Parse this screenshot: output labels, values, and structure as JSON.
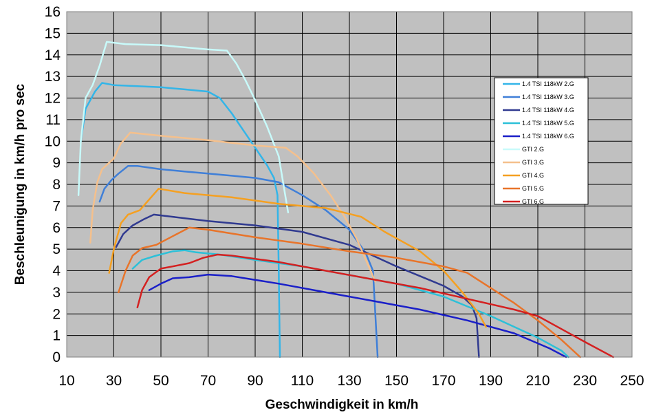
{
  "chart_data": {
    "type": "line",
    "title": "",
    "xlabel": "Geschwindigkeit in km/h",
    "ylabel": "Beschleunigung in km/h pro sec",
    "xlim": [
      10,
      250
    ],
    "ylim": [
      0,
      16
    ],
    "xticks": [
      "10",
      "30",
      "50",
      "70",
      "90",
      "110",
      "130",
      "150",
      "170",
      "190",
      "210",
      "230",
      "250"
    ],
    "yticks": [
      "0",
      "1",
      "2",
      "3",
      "4",
      "5",
      "6",
      "7",
      "8",
      "9",
      "10",
      "11",
      "12",
      "13",
      "14",
      "15",
      "16"
    ],
    "grid": true,
    "plot_background": "#c0c0c0",
    "legend_position": "right",
    "series": [
      {
        "name": "1.4 TSI 118kW  2.G",
        "color": "#33b5e8",
        "points": [
          [
            16,
            10
          ],
          [
            18,
            11.5
          ],
          [
            22,
            12.3
          ],
          [
            25,
            12.7
          ],
          [
            30,
            12.6
          ],
          [
            40,
            12.55
          ],
          [
            50,
            12.5
          ],
          [
            60,
            12.4
          ],
          [
            70,
            12.3
          ],
          [
            75,
            12
          ],
          [
            80,
            11.3
          ],
          [
            85,
            10.5
          ],
          [
            90,
            9.7
          ],
          [
            95,
            8.9
          ],
          [
            98,
            8.3
          ],
          [
            99.5,
            7.5
          ],
          [
            100,
            4
          ],
          [
            100.5,
            0
          ]
        ]
      },
      {
        "name": "1.4 TSI 118kW  3.G",
        "color": "#3f7fd8",
        "points": [
          [
            24,
            7.2
          ],
          [
            26,
            7.8
          ],
          [
            29,
            8.2
          ],
          [
            32,
            8.5
          ],
          [
            36,
            8.85
          ],
          [
            40,
            8.85
          ],
          [
            50,
            8.7
          ],
          [
            60,
            8.6
          ],
          [
            70,
            8.5
          ],
          [
            80,
            8.4
          ],
          [
            90,
            8.3
          ],
          [
            100,
            8.1
          ],
          [
            110,
            7.5
          ],
          [
            120,
            6.8
          ],
          [
            130,
            5.9
          ],
          [
            137,
            4.8
          ],
          [
            140,
            4
          ],
          [
            141,
            2
          ],
          [
            142,
            0
          ]
        ]
      },
      {
        "name": "1.4 TSI 118kW  4.G",
        "color": "#303a90",
        "points": [
          [
            31,
            5.1
          ],
          [
            34,
            5.7
          ],
          [
            38,
            6.1
          ],
          [
            43,
            6.4
          ],
          [
            47,
            6.6
          ],
          [
            55,
            6.5
          ],
          [
            70,
            6.3
          ],
          [
            90,
            6.1
          ],
          [
            110,
            5.8
          ],
          [
            130,
            5.2
          ],
          [
            150,
            4.2
          ],
          [
            170,
            3.3
          ],
          [
            178,
            2.8
          ],
          [
            182,
            2.4
          ],
          [
            184,
            1.8
          ],
          [
            185,
            0
          ]
        ]
      },
      {
        "name": "1.4 TSI 118kW  5.G",
        "color": "#2cc0d8",
        "points": [
          [
            38,
            4.1
          ],
          [
            42,
            4.5
          ],
          [
            48,
            4.7
          ],
          [
            55,
            4.9
          ],
          [
            60,
            4.95
          ],
          [
            65,
            4.85
          ],
          [
            75,
            4.75
          ],
          [
            90,
            4.5
          ],
          [
            110,
            4.2
          ],
          [
            130,
            3.8
          ],
          [
            150,
            3.4
          ],
          [
            170,
            2.8
          ],
          [
            190,
            1.9
          ],
          [
            200,
            1.4
          ],
          [
            210,
            0.9
          ],
          [
            220,
            0.3
          ],
          [
            223,
            0
          ]
        ]
      },
      {
        "name": "1.4 TSI 118kW  6.G",
        "color": "#1a1fc8",
        "points": [
          [
            45,
            3.1
          ],
          [
            50,
            3.4
          ],
          [
            55,
            3.65
          ],
          [
            62,
            3.7
          ],
          [
            70,
            3.82
          ],
          [
            80,
            3.75
          ],
          [
            100,
            3.4
          ],
          [
            120,
            3
          ],
          [
            140,
            2.6
          ],
          [
            160,
            2.2
          ],
          [
            180,
            1.7
          ],
          [
            200,
            1.1
          ],
          [
            215,
            0.4
          ],
          [
            222,
            0
          ]
        ]
      },
      {
        "name": "GTI  2.G",
        "color": "#c8fafa",
        "points": [
          [
            15,
            7.5
          ],
          [
            16,
            10
          ],
          [
            18,
            12
          ],
          [
            21,
            12.6
          ],
          [
            24,
            13.5
          ],
          [
            27,
            14.6
          ],
          [
            35,
            14.5
          ],
          [
            50,
            14.45
          ],
          [
            60,
            14.35
          ],
          [
            70,
            14.25
          ],
          [
            78,
            14.2
          ],
          [
            82,
            13.6
          ],
          [
            86,
            12.8
          ],
          [
            90,
            11.9
          ],
          [
            95,
            10.7
          ],
          [
            100,
            9.3
          ],
          [
            102,
            8
          ],
          [
            104,
            6.7
          ]
        ]
      },
      {
        "name": "GTI  3.G",
        "color": "#f5c08c",
        "points": [
          [
            20,
            5.3
          ],
          [
            21,
            6.8
          ],
          [
            23,
            8.1
          ],
          [
            25,
            8.7
          ],
          [
            30,
            9.2
          ],
          [
            33,
            9.9
          ],
          [
            37,
            10.4
          ],
          [
            50,
            10.25
          ],
          [
            70,
            10.05
          ],
          [
            90,
            9.8
          ],
          [
            103,
            9.7
          ],
          [
            108,
            9.3
          ],
          [
            115,
            8.5
          ],
          [
            122,
            7.5
          ],
          [
            128,
            6.5
          ],
          [
            133,
            5.5
          ],
          [
            137,
            4.5
          ],
          [
            141,
            3.5
          ]
        ]
      },
      {
        "name": "GTI  4.G",
        "color": "#f5a021",
        "points": [
          [
            28,
            3.9
          ],
          [
            30,
            5
          ],
          [
            33,
            6.2
          ],
          [
            36,
            6.6
          ],
          [
            41,
            6.8
          ],
          [
            45,
            7.3
          ],
          [
            49,
            7.8
          ],
          [
            60,
            7.6
          ],
          [
            80,
            7.4
          ],
          [
            100,
            7.1
          ],
          [
            120,
            6.9
          ],
          [
            135,
            6.5
          ],
          [
            145,
            5.8
          ],
          [
            160,
            4.9
          ],
          [
            170,
            4
          ],
          [
            178,
            3
          ],
          [
            185,
            2
          ],
          [
            188,
            1.4
          ]
        ]
      },
      {
        "name": "GTI  5.G",
        "color": "#e8742a",
        "points": [
          [
            32,
            3
          ],
          [
            35,
            4
          ],
          [
            38,
            4.7
          ],
          [
            42,
            5.05
          ],
          [
            48,
            5.2
          ],
          [
            55,
            5.6
          ],
          [
            62,
            6
          ],
          [
            70,
            5.9
          ],
          [
            90,
            5.55
          ],
          [
            110,
            5.25
          ],
          [
            130,
            4.9
          ],
          [
            150,
            4.6
          ],
          [
            170,
            4.2
          ],
          [
            180,
            3.9
          ],
          [
            190,
            3.2
          ],
          [
            200,
            2.5
          ],
          [
            210,
            1.7
          ],
          [
            220,
            0.8
          ],
          [
            228,
            0
          ]
        ]
      },
      {
        "name": "GTI  6.G",
        "color": "#d42020",
        "points": [
          [
            40,
            2.3
          ],
          [
            42,
            3.1
          ],
          [
            45,
            3.7
          ],
          [
            50,
            4.1
          ],
          [
            55,
            4.2
          ],
          [
            62,
            4.35
          ],
          [
            68,
            4.6
          ],
          [
            74,
            4.75
          ],
          [
            80,
            4.7
          ],
          [
            100,
            4.4
          ],
          [
            120,
            4
          ],
          [
            140,
            3.6
          ],
          [
            160,
            3.2
          ],
          [
            180,
            2.7
          ],
          [
            200,
            2.2
          ],
          [
            210,
            1.9
          ],
          [
            220,
            1.3
          ],
          [
            230,
            0.7
          ],
          [
            242,
            0
          ]
        ]
      }
    ]
  }
}
